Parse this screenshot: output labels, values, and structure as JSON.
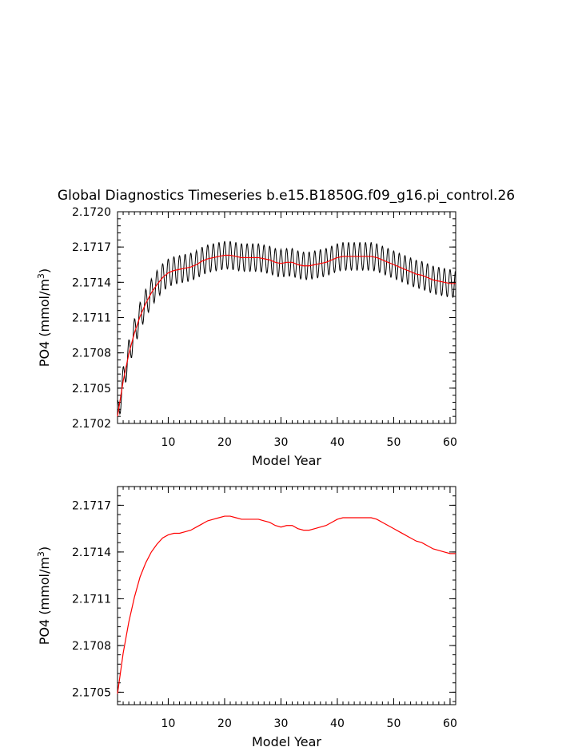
{
  "chart_data": [
    {
      "type": "line",
      "title": "Global Diagnostics Timeseries b.e15.B1850G.f09_g16.pi_control.26",
      "xlabel": "Model Year",
      "ylabel": "PO4 (mmol/m",
      "ylabel_sup": "3",
      "ylabel_close": ")",
      "xlim": [
        1,
        61
      ],
      "ylim": [
        2.1702,
        2.172
      ],
      "xticks": [
        10,
        20,
        30,
        40,
        50,
        60
      ],
      "xtick_labels": [
        "10",
        "20",
        "30",
        "40",
        "50",
        "60"
      ],
      "yticks": [
        2.1702,
        2.1705,
        2.1708,
        2.1711,
        2.1714,
        2.1717,
        2.172
      ],
      "ytick_labels": [
        "2.1702",
        "2.1705",
        "2.1708",
        "2.1711",
        "2.1714",
        "2.1717",
        "2.1720"
      ],
      "grid": false,
      "series": [
        {
          "style": "monthly",
          "color": "#000000",
          "x": [
            1,
            2,
            3,
            4,
            5,
            6,
            7,
            8,
            9,
            10,
            11,
            12,
            13,
            14,
            15,
            16,
            17,
            18,
            19,
            20,
            21,
            22,
            23,
            24,
            25,
            26,
            27,
            28,
            29,
            30,
            31,
            32,
            33,
            34,
            35,
            36,
            37,
            38,
            39,
            40,
            41,
            42,
            43,
            44,
            45,
            46,
            47,
            48,
            49,
            50,
            51,
            52,
            53,
            54,
            55,
            56,
            57,
            58,
            59,
            60,
            61
          ],
          "values": [
            2.17026,
            2.17056,
            2.17079,
            2.17097,
            2.17111,
            2.17122,
            2.17131,
            2.17138,
            2.17144,
            2.17148,
            2.1715,
            2.17151,
            2.17152,
            2.17153,
            2.17155,
            2.17158,
            2.1716,
            2.17161,
            2.17162,
            2.17163,
            2.17163,
            2.17162,
            2.17161,
            2.17161,
            2.17161,
            2.17161,
            2.1716,
            2.17159,
            2.17157,
            2.17156,
            2.17157,
            2.17157,
            2.17155,
            2.17154,
            2.17154,
            2.17155,
            2.17156,
            2.17157,
            2.17159,
            2.17161,
            2.17162,
            2.17162,
            2.17162,
            2.17162,
            2.17162,
            2.17162,
            2.17161,
            2.17159,
            2.17157,
            2.17155,
            2.17153,
            2.17151,
            2.17149,
            2.17147,
            2.17146,
            2.17144,
            2.17142,
            2.17141,
            2.1714,
            2.17139,
            2.17139
          ],
          "seasonal_amplitude": 0.00012
        },
        {
          "style": "annual",
          "color": "#ff0000",
          "x": [
            1,
            2,
            3,
            4,
            5,
            6,
            7,
            8,
            9,
            10,
            11,
            12,
            13,
            14,
            15,
            16,
            17,
            18,
            19,
            20,
            21,
            22,
            23,
            24,
            25,
            26,
            27,
            28,
            29,
            30,
            31,
            32,
            33,
            34,
            35,
            36,
            37,
            38,
            39,
            40,
            41,
            42,
            43,
            44,
            45,
            46,
            47,
            48,
            49,
            50,
            51,
            52,
            53,
            54,
            55,
            56,
            57,
            58,
            59,
            60,
            61
          ],
          "values": [
            2.17026,
            2.17056,
            2.17079,
            2.17097,
            2.17111,
            2.17122,
            2.17131,
            2.17138,
            2.17144,
            2.17148,
            2.1715,
            2.17151,
            2.17152,
            2.17153,
            2.17155,
            2.17158,
            2.1716,
            2.17161,
            2.17162,
            2.17163,
            2.17163,
            2.17162,
            2.17161,
            2.17161,
            2.17161,
            2.17161,
            2.1716,
            2.17159,
            2.17157,
            2.17156,
            2.17157,
            2.17157,
            2.17155,
            2.17154,
            2.17154,
            2.17155,
            2.17156,
            2.17157,
            2.17159,
            2.17161,
            2.17162,
            2.17162,
            2.17162,
            2.17162,
            2.17162,
            2.17162,
            2.17161,
            2.17159,
            2.17157,
            2.17155,
            2.17153,
            2.17151,
            2.17149,
            2.17147,
            2.17146,
            2.17144,
            2.17142,
            2.17141,
            2.1714,
            2.17139,
            2.17139
          ]
        }
      ]
    },
    {
      "type": "line",
      "xlabel": "Model Year",
      "ylabel": "PO4 (mmol/m",
      "ylabel_sup": "3",
      "ylabel_close": ")",
      "xlim": [
        1,
        61
      ],
      "ylim": [
        2.17042,
        2.17182
      ],
      "xticks": [
        10,
        20,
        30,
        40,
        50,
        60
      ],
      "xtick_labels": [
        "10",
        "20",
        "30",
        "40",
        "50",
        "60"
      ],
      "yticks": [
        2.1705,
        2.1708,
        2.1711,
        2.1714,
        2.1717
      ],
      "ytick_labels": [
        "2.1705",
        "2.1708",
        "2.1711",
        "2.1714",
        "2.1717"
      ],
      "grid": false,
      "series": [
        {
          "style": "annual",
          "color": "#ff0000",
          "x": [
            1,
            2,
            3,
            4,
            5,
            6,
            7,
            8,
            9,
            10,
            11,
            12,
            13,
            14,
            15,
            16,
            17,
            18,
            19,
            20,
            21,
            22,
            23,
            24,
            25,
            26,
            27,
            28,
            29,
            30,
            31,
            32,
            33,
            34,
            35,
            36,
            37,
            38,
            39,
            40,
            41,
            42,
            43,
            44,
            45,
            46,
            47,
            48,
            49,
            50,
            51,
            52,
            53,
            54,
            55,
            56,
            57,
            58,
            59,
            60,
            61
          ],
          "values": [
            2.17049,
            2.17075,
            2.17095,
            2.17111,
            2.17124,
            2.17133,
            2.1714,
            2.17145,
            2.17149,
            2.17151,
            2.17152,
            2.17152,
            2.17153,
            2.17154,
            2.17156,
            2.17158,
            2.1716,
            2.17161,
            2.17162,
            2.17163,
            2.17163,
            2.17162,
            2.17161,
            2.17161,
            2.17161,
            2.17161,
            2.1716,
            2.17159,
            2.17157,
            2.17156,
            2.17157,
            2.17157,
            2.17155,
            2.17154,
            2.17154,
            2.17155,
            2.17156,
            2.17157,
            2.17159,
            2.17161,
            2.17162,
            2.17162,
            2.17162,
            2.17162,
            2.17162,
            2.17162,
            2.17161,
            2.17159,
            2.17157,
            2.17155,
            2.17153,
            2.17151,
            2.17149,
            2.17147,
            2.17146,
            2.17144,
            2.17142,
            2.17141,
            2.1714,
            2.17139,
            2.17139
          ]
        }
      ]
    }
  ]
}
